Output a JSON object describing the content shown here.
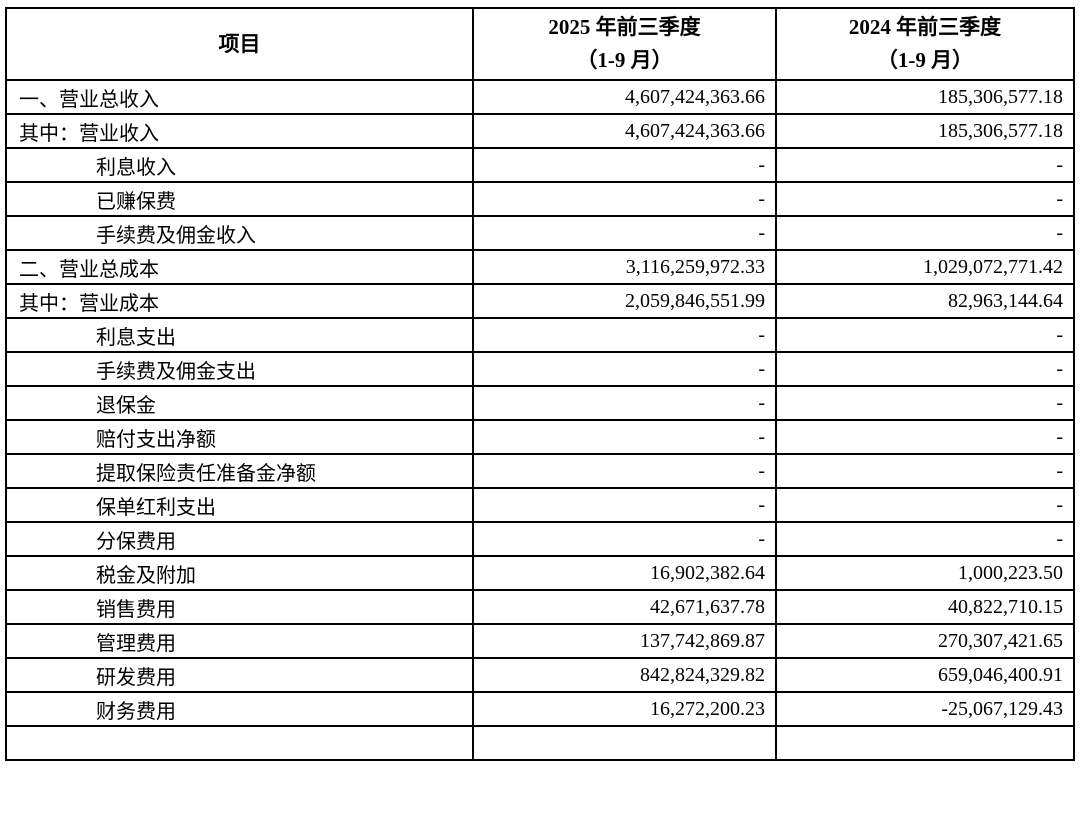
{
  "document": {
    "type": "financial-statement-table",
    "language": "zh-CN",
    "text_color": "#000000",
    "border_color": "#000000",
    "background_color": "#ffffff"
  },
  "table": {
    "header": {
      "item": "项目",
      "col_2025_line1": "2025 年前三季度",
      "col_2025_line2": "（1-9 月）",
      "col_2024_line1": "2024 年前三季度",
      "col_2024_line2": "（1-9 月）"
    },
    "rows": [
      {
        "label": "一、营业总收入",
        "indent": false,
        "v2025": "4,607,424,363.66",
        "v2024": "185,306,577.18"
      },
      {
        "label": "其中：营业收入",
        "indent": false,
        "v2025": "4,607,424,363.66",
        "v2024": "185,306,577.18"
      },
      {
        "label": "利息收入",
        "indent": true,
        "v2025": "-",
        "v2024": "-"
      },
      {
        "label": "已赚保费",
        "indent": true,
        "v2025": "-",
        "v2024": "-"
      },
      {
        "label": "手续费及佣金收入",
        "indent": true,
        "v2025": "-",
        "v2024": "-"
      },
      {
        "label": "二、营业总成本",
        "indent": false,
        "v2025": "3,116,259,972.33",
        "v2024": "1,029,072,771.42"
      },
      {
        "label": "其中：营业成本",
        "indent": false,
        "v2025": "2,059,846,551.99",
        "v2024": "82,963,144.64"
      },
      {
        "label": "利息支出",
        "indent": true,
        "v2025": "-",
        "v2024": "-"
      },
      {
        "label": "手续费及佣金支出",
        "indent": true,
        "v2025": "-",
        "v2024": "-"
      },
      {
        "label": "退保金",
        "indent": true,
        "v2025": "-",
        "v2024": "-"
      },
      {
        "label": "赔付支出净额",
        "indent": true,
        "v2025": "-",
        "v2024": "-"
      },
      {
        "label": "提取保险责任准备金净额",
        "indent": true,
        "v2025": "-",
        "v2024": "-"
      },
      {
        "label": "保单红利支出",
        "indent": true,
        "v2025": "-",
        "v2024": "-"
      },
      {
        "label": "分保费用",
        "indent": true,
        "v2025": "-",
        "v2024": "-"
      },
      {
        "label": "税金及附加",
        "indent": true,
        "v2025": "16,902,382.64",
        "v2024": "1,000,223.50"
      },
      {
        "label": "销售费用",
        "indent": true,
        "v2025": "42,671,637.78",
        "v2024": "40,822,710.15"
      },
      {
        "label": "管理费用",
        "indent": true,
        "v2025": "137,742,869.87",
        "v2024": "270,307,421.65"
      },
      {
        "label": "研发费用",
        "indent": true,
        "v2025": "842,824,329.82",
        "v2024": "659,046,400.91"
      },
      {
        "label": "财务费用",
        "indent": true,
        "v2025": "16,272,200.23",
        "v2024": "-25,067,129.43"
      },
      {
        "label": "",
        "indent": true,
        "v2025": "",
        "v2024": "",
        "partial": true
      }
    ]
  }
}
